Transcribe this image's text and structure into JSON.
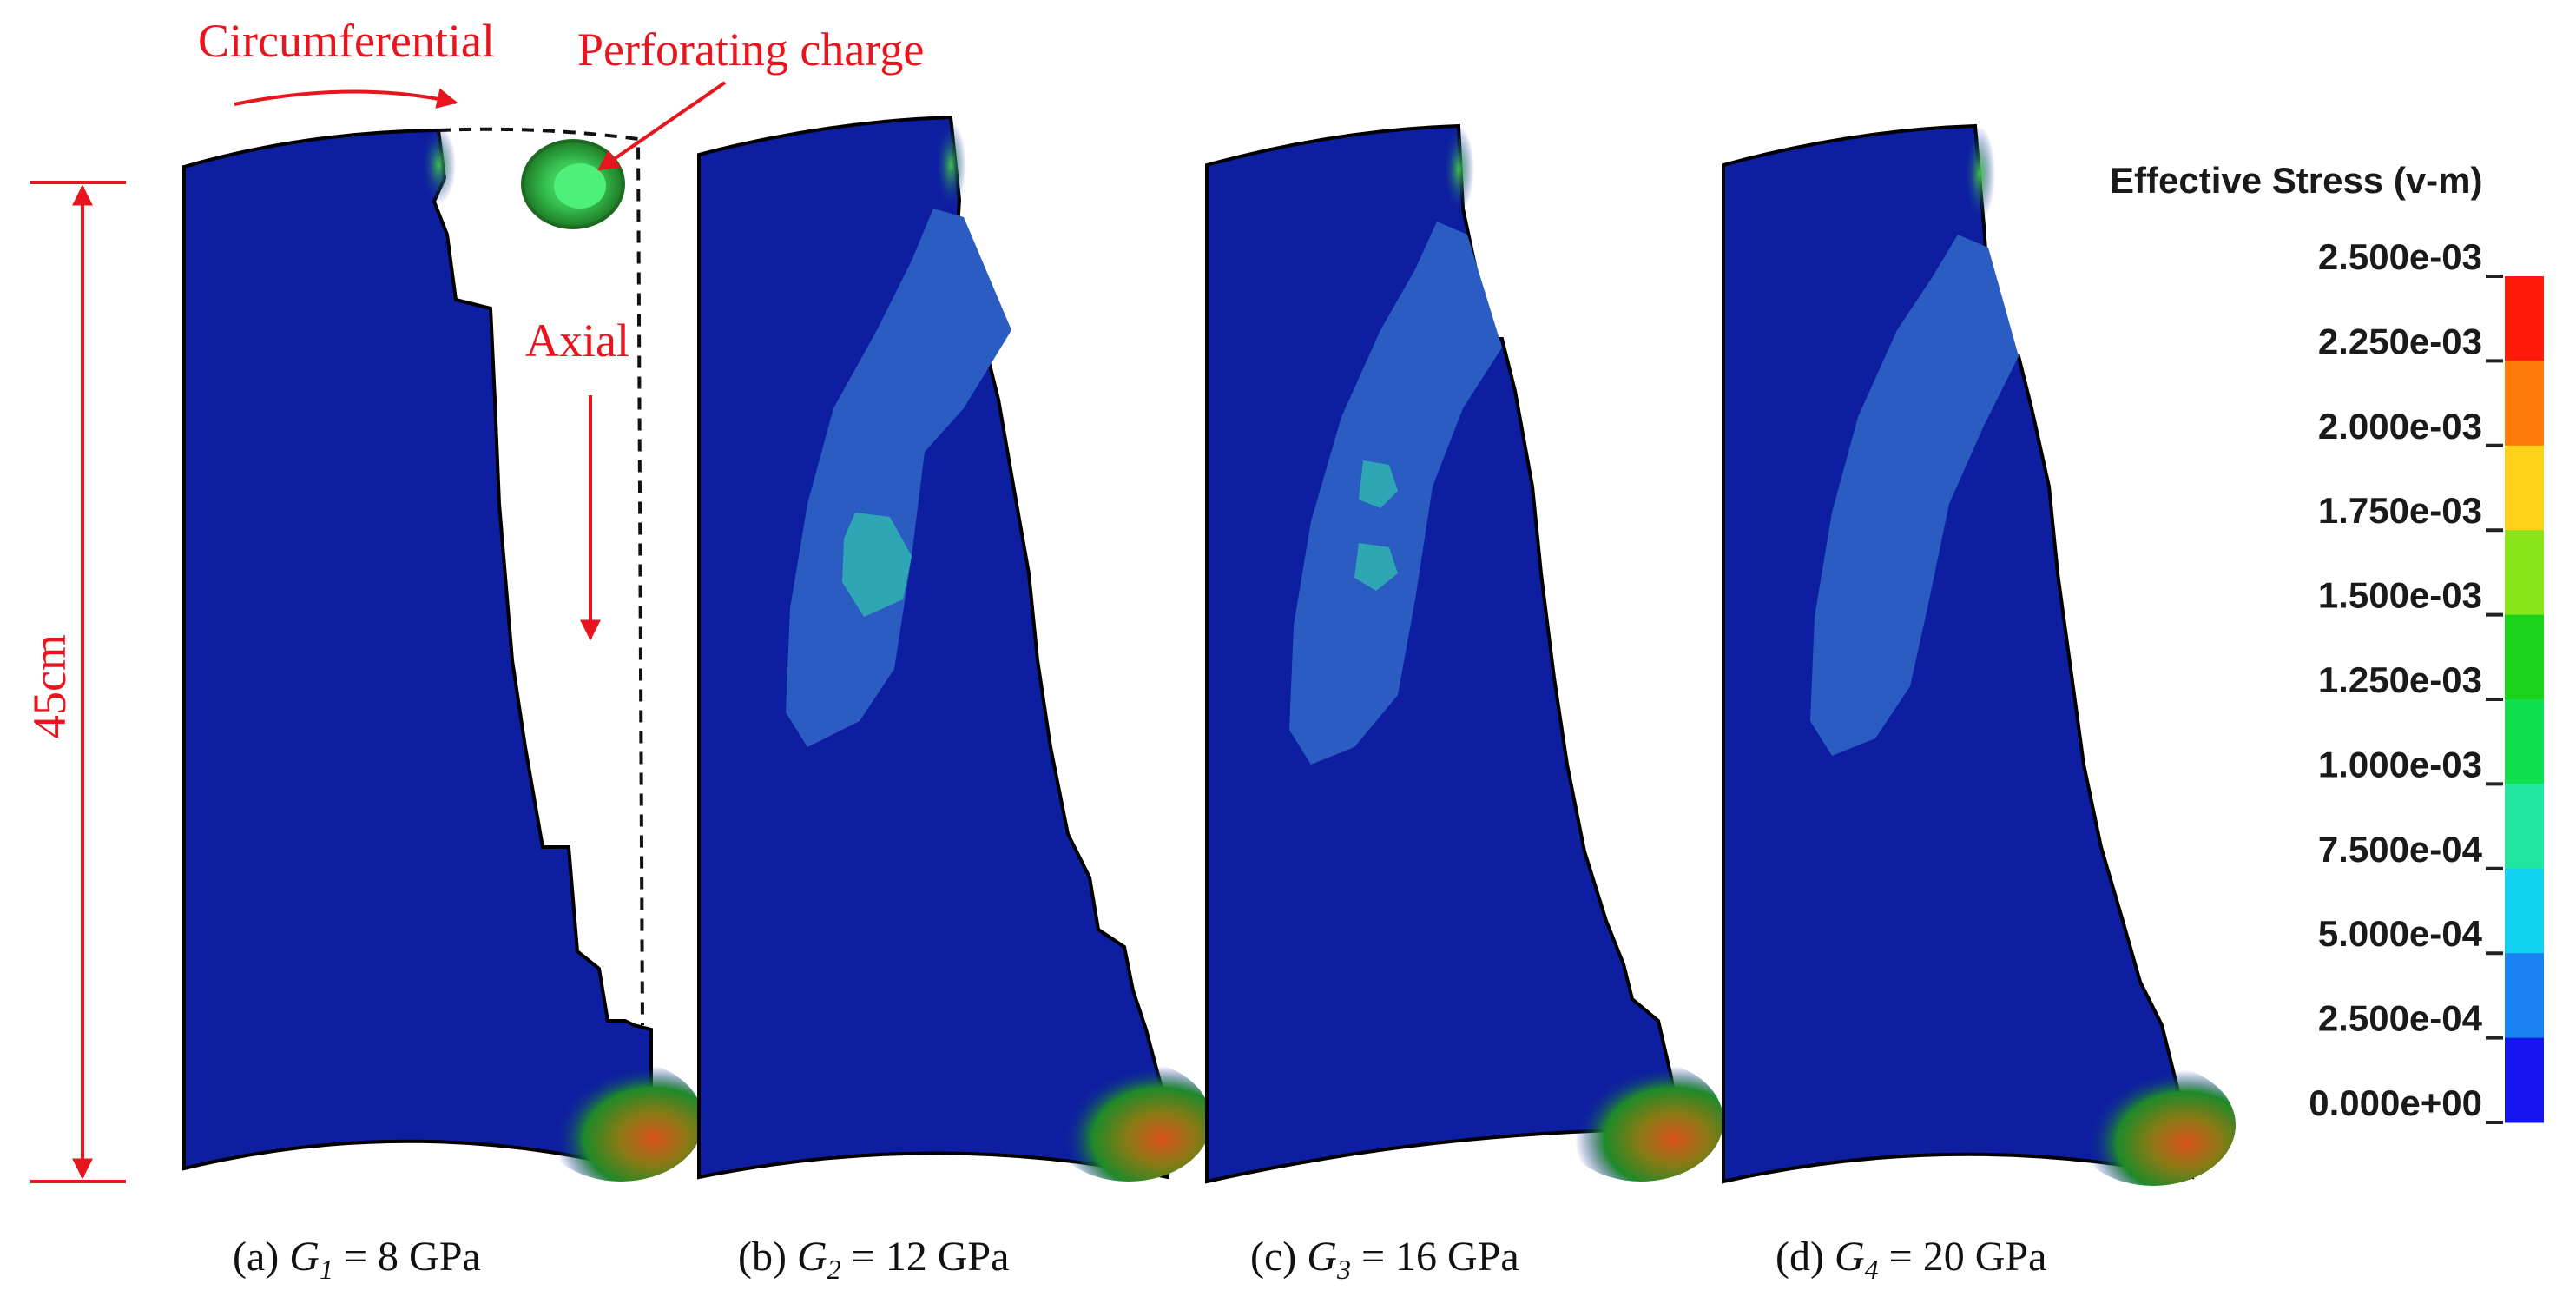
{
  "annotations": {
    "circumferential": "Circumferential",
    "perforating_charge": "Perforating charge",
    "axial": "Axial",
    "height": "45cm"
  },
  "panels": [
    {
      "prefix": "(a) ",
      "symbol": "G",
      "sub": "1",
      "suffix": " = 8 GPa"
    },
    {
      "prefix": "(b) ",
      "symbol": "G",
      "sub": "2",
      "suffix": " = 12 GPa"
    },
    {
      "prefix": "(c) ",
      "symbol": "G",
      "sub": "3",
      "suffix": " = 16 GPa"
    },
    {
      "prefix": "(d) ",
      "symbol": "G",
      "sub": "4",
      "suffix": " = 20 GPa"
    }
  ],
  "colorbar": {
    "title": "Effective Stress (v-m)",
    "labels": [
      "2.500e-03",
      "2.250e-03",
      "2.000e-03",
      "1.750e-03",
      "1.500e-03",
      "1.250e-03",
      "1.000e-03",
      "7.500e-04",
      "5.000e-04",
      "2.500e-04",
      "0.000e+00"
    ],
    "colors_top_to_bottom": [
      "#ff1a0a",
      "#ff7a0a",
      "#ffd21a",
      "#8ae61a",
      "#1ad21a",
      "#10e050",
      "#20e6a0",
      "#10d2f0",
      "#1a82f0",
      "#1414f0"
    ]
  },
  "colors": {
    "background_blue": "#0d1fa0",
    "low_stress": "#2a5cc2",
    "mid_stress": "#2fa6b4",
    "hot_spot": "#c05a1a",
    "annotation": "#e8141e"
  }
}
